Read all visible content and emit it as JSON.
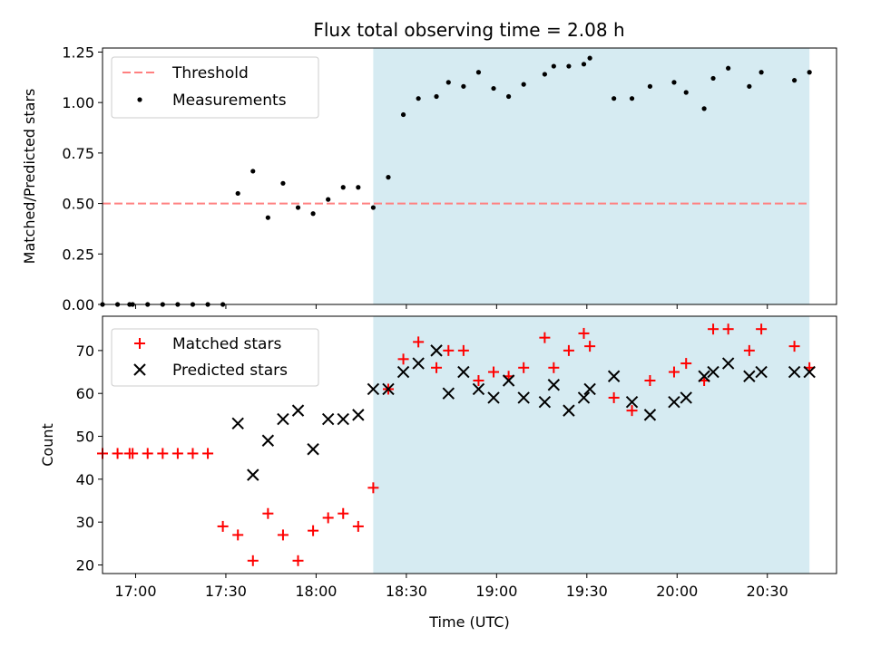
{
  "chart_data": {
    "title": "Flux total observing time = 2.08 h",
    "xlabel": "Time (UTC)",
    "x_unit": "minutes after 16:00 UTC",
    "xlim": [
      49,
      293
    ],
    "xticks": [
      {
        "v": 60,
        "label": "17:00"
      },
      {
        "v": 90,
        "label": "17:30"
      },
      {
        "v": 120,
        "label": "18:00"
      },
      {
        "v": 150,
        "label": "18:30"
      },
      {
        "v": 180,
        "label": "19:00"
      },
      {
        "v": 210,
        "label": "19:30"
      },
      {
        "v": 240,
        "label": "20:00"
      },
      {
        "v": 270,
        "label": "20:30"
      }
    ],
    "shaded_region": {
      "x": [
        139,
        284
      ],
      "color": "#add8e6"
    },
    "colors": {
      "threshold": "#ff8080",
      "measurements": "#000000",
      "matched": "#ff0000",
      "predicted": "#000000"
    },
    "panels": [
      {
        "type": "scatter",
        "ylabel": "Matched/Predicted stars",
        "ylim": [
          0,
          1.27
        ],
        "yticks": [
          {
            "v": 0.0,
            "label": "0.00"
          },
          {
            "v": 0.25,
            "label": "0.25"
          },
          {
            "v": 0.5,
            "label": "0.50"
          },
          {
            "v": 0.75,
            "label": "0.75"
          },
          {
            "v": 1.0,
            "label": "1.00"
          },
          {
            "v": 1.25,
            "label": "1.25"
          }
        ],
        "threshold": {
          "name": "Threshold",
          "value": 0.5,
          "x": [
            49,
            284
          ]
        },
        "legend": {
          "position": "upper left",
          "entries": [
            "Threshold",
            "Measurements"
          ]
        },
        "series": [
          {
            "name": "Measurements",
            "marker": "dot",
            "x": [
              49,
              54,
              58,
              59,
              64,
              69,
              74,
              79,
              84,
              89,
              94,
              99,
              104,
              109,
              114,
              119,
              124,
              129,
              134,
              139,
              144,
              149,
              154,
              160,
              164,
              169,
              174,
              179,
              184,
              189,
              196,
              199,
              204,
              209,
              211,
              219,
              225,
              231,
              239,
              243,
              249,
              252,
              257,
              264,
              268,
              279,
              284
            ],
            "y": [
              0,
              0,
              0,
              0,
              0,
              0,
              0,
              0,
              0,
              0,
              0.55,
              0.66,
              0.43,
              0.6,
              0.48,
              0.45,
              0.52,
              0.58,
              0.58,
              0.48,
              0.63,
              0.94,
              1.02,
              1.03,
              1.1,
              1.08,
              1.15,
              1.07,
              1.03,
              1.09,
              1.14,
              1.18,
              1.18,
              1.19,
              1.22,
              1.02,
              1.02,
              1.08,
              1.1,
              1.05,
              0.97,
              1.12,
              1.17,
              1.08,
              1.15,
              1.11,
              1.15
            ]
          }
        ]
      },
      {
        "type": "scatter",
        "ylabel": "Count",
        "ylim": [
          18,
          78
        ],
        "yticks": [
          {
            "v": 20,
            "label": "20"
          },
          {
            "v": 30,
            "label": "30"
          },
          {
            "v": 40,
            "label": "40"
          },
          {
            "v": 50,
            "label": "50"
          },
          {
            "v": 60,
            "label": "60"
          },
          {
            "v": 70,
            "label": "70"
          }
        ],
        "legend": {
          "position": "upper left",
          "entries": [
            "Matched stars",
            "Predicted stars"
          ]
        },
        "series": [
          {
            "name": "Matched stars",
            "marker": "plus",
            "x": [
              49,
              54,
              58,
              59,
              64,
              69,
              74,
              79,
              84,
              89,
              94,
              99,
              104,
              109,
              114,
              119,
              124,
              129,
              134,
              139,
              144,
              149,
              154,
              160,
              164,
              169,
              174,
              179,
              184,
              189,
              196,
              199,
              204,
              209,
              211,
              219,
              225,
              231,
              239,
              243,
              249,
              252,
              257,
              264,
              268,
              279,
              284
            ],
            "y": [
              46,
              46,
              46,
              46,
              46,
              46,
              46,
              46,
              46,
              29,
              27,
              21,
              32,
              27,
              21,
              28,
              31,
              32,
              29,
              38,
              61,
              68,
              72,
              66,
              70,
              70,
              63,
              65,
              64,
              66,
              73,
              66,
              70,
              74,
              71,
              59,
              56,
              63,
              65,
              67,
              63,
              75,
              75,
              70,
              75,
              71,
              66
            ]
          },
          {
            "name": "Predicted stars",
            "marker": "x",
            "x": [
              94,
              99,
              104,
              109,
              114,
              119,
              124,
              129,
              134,
              139,
              144,
              149,
              154,
              160,
              164,
              169,
              174,
              179,
              184,
              189,
              196,
              199,
              204,
              209,
              211,
              219,
              225,
              231,
              239,
              243,
              249,
              252,
              257,
              264,
              268,
              279,
              284
            ],
            "y": [
              53,
              41,
              49,
              54,
              56,
              47,
              54,
              54,
              55,
              61,
              61,
              65,
              67,
              70,
              60,
              65,
              61,
              59,
              63,
              59,
              58,
              62,
              56,
              59,
              61,
              64,
              58,
              55,
              58,
              59,
              64,
              65,
              67,
              64,
              65,
              65,
              65
            ]
          }
        ]
      }
    ]
  }
}
